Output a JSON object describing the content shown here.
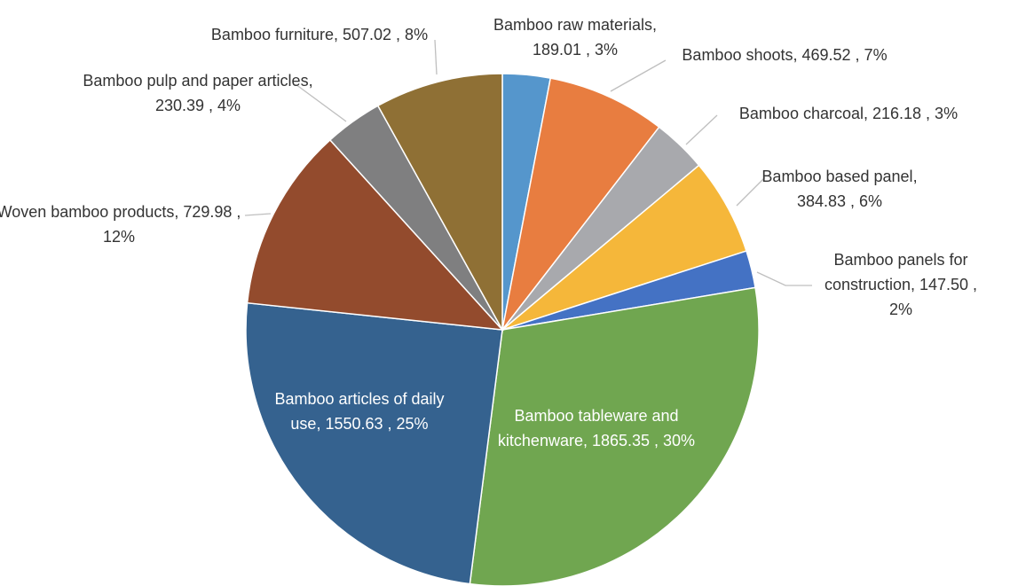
{
  "chart_data": {
    "type": "pie",
    "categories": [
      "Bamboo raw materials",
      "Bamboo shoots",
      "Bamboo charcoal",
      "Bamboo based panel",
      "Bamboo panels for construction",
      "Bamboo tableware and kitchenware",
      "Bamboo articles of daily use",
      "Woven bamboo products",
      "Bamboo pulp and paper articles",
      "Bamboo furniture"
    ],
    "values": [
      189.01,
      469.52,
      216.18,
      384.83,
      147.5,
      1865.35,
      1550.63,
      729.98,
      230.39,
      507.02
    ],
    "value_labels": [
      ", 189.01 , 3%",
      ", 469.52 , 7%",
      ", 216.18 , 3%",
      ", 384.83 , 6%",
      ", 147.50 , 2%",
      ", 1865.35 , 30%",
      ", 1550.63 , 25%",
      ", 729.98 , 12%",
      ", 230.39 , 4%",
      ", 507.02 , 8%"
    ],
    "colors": [
      "#5596cc",
      "#e87d40",
      "#a8a9ad",
      "#f5b73a",
      "#4472c4",
      "#70a650",
      "#35628f",
      "#934b2d",
      "#7f7f80",
      "#8f7035"
    ]
  }
}
